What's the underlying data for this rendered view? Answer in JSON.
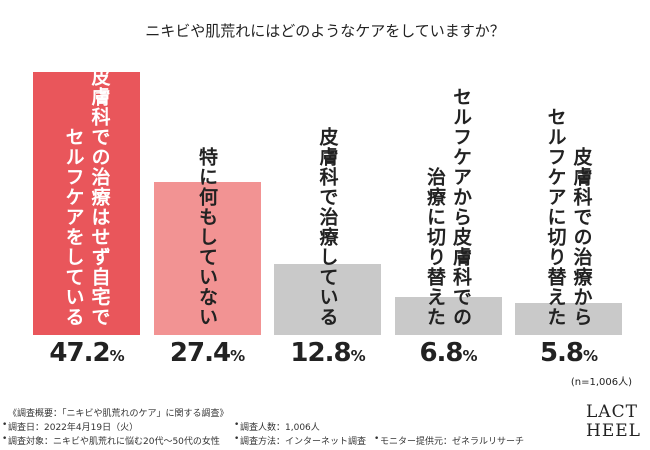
{
  "chart_data": {
    "type": "bar",
    "title": "ニキビや肌荒れにはどのようなケアをしていますか？",
    "categories": [
      [
        "皮膚科での治療はせず自宅で",
        "セルフケアをしている"
      ],
      [
        "特に何もしていない"
      ],
      [
        "皮膚科で治療している"
      ],
      [
        "セルフケアから皮膚科での",
        "治療に切り替えた"
      ],
      [
        "皮膚科での治療から",
        "セルフケアに切り替えた"
      ]
    ],
    "values": [
      47.2,
      27.4,
      12.8,
      6.8,
      5.8
    ],
    "value_labels": [
      "47.2%",
      "27.4%",
      "12.8%",
      "6.8%",
      "5.8%"
    ],
    "colors": [
      "#e9565b",
      "#f29393",
      "#c9c9c9",
      "#c9c9c9",
      "#c9c9c9"
    ],
    "label_colors": [
      "#ffffff",
      "#222222",
      "#222222",
      "#222222",
      "#222222"
    ],
    "sample_note": "(n=1,006人)",
    "footnotes": {
      "heading": "《調査概要：「ニキビや肌荒れのケア」に関する調査》",
      "items": [
        "調査日：2022年4月19日（火）",
        "調査人数：1,006人",
        "調査対象：ニキビや肌荒れに悩む20代～50代の女性",
        "調査方法：インターネット調査",
        "モニター提供元：ゼネラルリサーチ"
      ]
    },
    "logo": [
      "LACT",
      "HEEL"
    ]
  }
}
